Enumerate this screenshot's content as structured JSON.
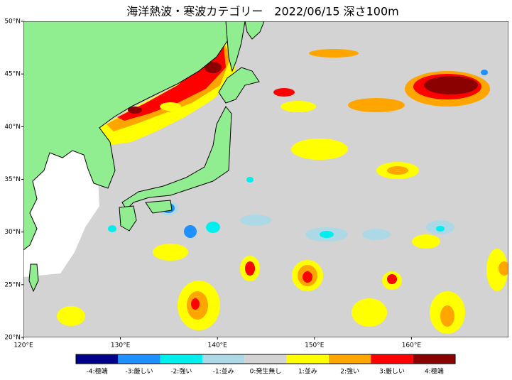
{
  "title": "海洋熱波・寒波カテゴリー　2022/06/15 深さ100m",
  "map": {
    "xlim": [
      120,
      170
    ],
    "ylim": [
      20,
      50
    ],
    "xticks": [
      {
        "value": 120,
        "label": "120°E"
      },
      {
        "value": 130,
        "label": "130°E"
      },
      {
        "value": 140,
        "label": "140°E"
      },
      {
        "value": 150,
        "label": "150°E"
      },
      {
        "value": 160,
        "label": "160°E"
      }
    ],
    "yticks": [
      {
        "value": 20,
        "label": "20°N"
      },
      {
        "value": 25,
        "label": "25°N"
      },
      {
        "value": 30,
        "label": "30°N"
      },
      {
        "value": 35,
        "label": "35°N"
      },
      {
        "value": 40,
        "label": "40°N"
      },
      {
        "value": 45,
        "label": "45°N"
      },
      {
        "value": 50,
        "label": "50°N"
      }
    ]
  },
  "legend": {
    "items": [
      {
        "label": "-4:極端",
        "color": "#00008b"
      },
      {
        "label": "-3:厳しい",
        "color": "#1e90ff"
      },
      {
        "label": "-2:強い",
        "color": "#00eeee"
      },
      {
        "label": "-1:並み",
        "color": "#add8e6"
      },
      {
        "label": "0:発生無し",
        "color": "#d3d3d3"
      },
      {
        "label": "1:並み",
        "color": "#ffff00"
      },
      {
        "label": "2:強い",
        "color": "#ffa500"
      },
      {
        "label": "3:厳しい",
        "color": "#ff0000"
      },
      {
        "label": "4:極端",
        "color": "#8b0000"
      }
    ]
  }
}
